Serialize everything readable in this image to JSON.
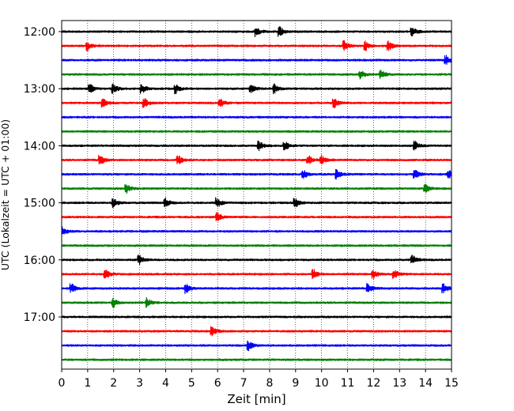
{
  "chart_data": {
    "type": "line",
    "title": "",
    "xlabel": "Zeit  [min]",
    "ylabel": "UTC (Lokalzeit = UTC + 01:00)",
    "xlim": [
      0,
      15
    ],
    "x_ticks": [
      "0",
      "1",
      "2",
      "3",
      "4",
      "5",
      "6",
      "7",
      "8",
      "9",
      "10",
      "11",
      "12",
      "13",
      "14",
      "15"
    ],
    "y_ticks": [
      "12:00",
      "13:00",
      "14:00",
      "15:00",
      "16:00",
      "17:00"
    ],
    "trace_interval_min": 15,
    "grid": "vertical dotted",
    "trace_colors": [
      "#000000",
      "#ff0000",
      "#0000ff",
      "#008000"
    ],
    "traces": [
      {
        "start": "12:00",
        "color": "#000000",
        "end_min": 15,
        "events": [
          7.5,
          8.4,
          13.5
        ]
      },
      {
        "start": "12:15",
        "color": "#ff0000",
        "end_min": 15,
        "events": [
          1.0,
          10.9,
          11.7,
          12.6
        ]
      },
      {
        "start": "12:30",
        "color": "#0000ff",
        "end_min": 15,
        "events": [
          14.8
        ]
      },
      {
        "start": "12:45",
        "color": "#008000",
        "end_min": 15,
        "events": [
          11.5,
          12.3
        ]
      },
      {
        "start": "13:00",
        "color": "#000000",
        "end_min": 15,
        "events": [
          1.1,
          2.0,
          3.1,
          4.4,
          7.3,
          8.2
        ]
      },
      {
        "start": "13:15",
        "color": "#ff0000",
        "end_min": 15,
        "events": [
          1.6,
          3.2,
          6.1,
          10.5
        ]
      },
      {
        "start": "13:30",
        "color": "#0000ff",
        "end_min": 15,
        "events": []
      },
      {
        "start": "13:45",
        "color": "#008000",
        "end_min": 15,
        "events": []
      },
      {
        "start": "14:00",
        "color": "#000000",
        "end_min": 15,
        "events": [
          7.6,
          8.6,
          13.6
        ]
      },
      {
        "start": "14:15",
        "color": "#ff0000",
        "end_min": 15,
        "events": [
          1.5,
          4.5,
          9.5,
          10.0
        ]
      },
      {
        "start": "14:30",
        "color": "#0000ff",
        "end_min": 15,
        "events": [
          9.3,
          10.6,
          13.6,
          14.9
        ]
      },
      {
        "start": "14:45",
        "color": "#008000",
        "end_min": 15,
        "events": [
          2.5,
          14.0
        ]
      },
      {
        "start": "15:00",
        "color": "#000000",
        "end_min": 15,
        "events": [
          2.0,
          4.0,
          6.0,
          9.0
        ]
      },
      {
        "start": "15:15",
        "color": "#ff0000",
        "end_min": 15,
        "events": [
          6.0
        ]
      },
      {
        "start": "15:30",
        "color": "#0000ff",
        "end_min": 15,
        "events": [
          0.05
        ]
      },
      {
        "start": "15:45",
        "color": "#008000",
        "end_min": 15,
        "events": []
      },
      {
        "start": "16:00",
        "color": "#000000",
        "end_min": 15,
        "events": [
          3.0,
          13.5
        ]
      },
      {
        "start": "16:15",
        "color": "#ff0000",
        "end_min": 15,
        "events": [
          1.7,
          9.7,
          12.0,
          12.8
        ]
      },
      {
        "start": "16:30",
        "color": "#0000ff",
        "end_min": 15,
        "events": [
          0.4,
          4.8,
          11.8,
          14.7
        ]
      },
      {
        "start": "16:45",
        "color": "#008000",
        "end_min": 15,
        "events": [
          2.0,
          3.3
        ]
      },
      {
        "start": "17:00",
        "color": "#000000",
        "end_min": 15,
        "events": []
      },
      {
        "start": "17:15",
        "color": "#ff0000",
        "end_min": 15,
        "events": [
          5.8
        ]
      },
      {
        "start": "17:30",
        "color": "#0000ff",
        "end_min": 15,
        "events": [
          7.2
        ]
      },
      {
        "start": "17:45",
        "color": "#008000",
        "end_min": 15,
        "events": []
      }
    ]
  }
}
